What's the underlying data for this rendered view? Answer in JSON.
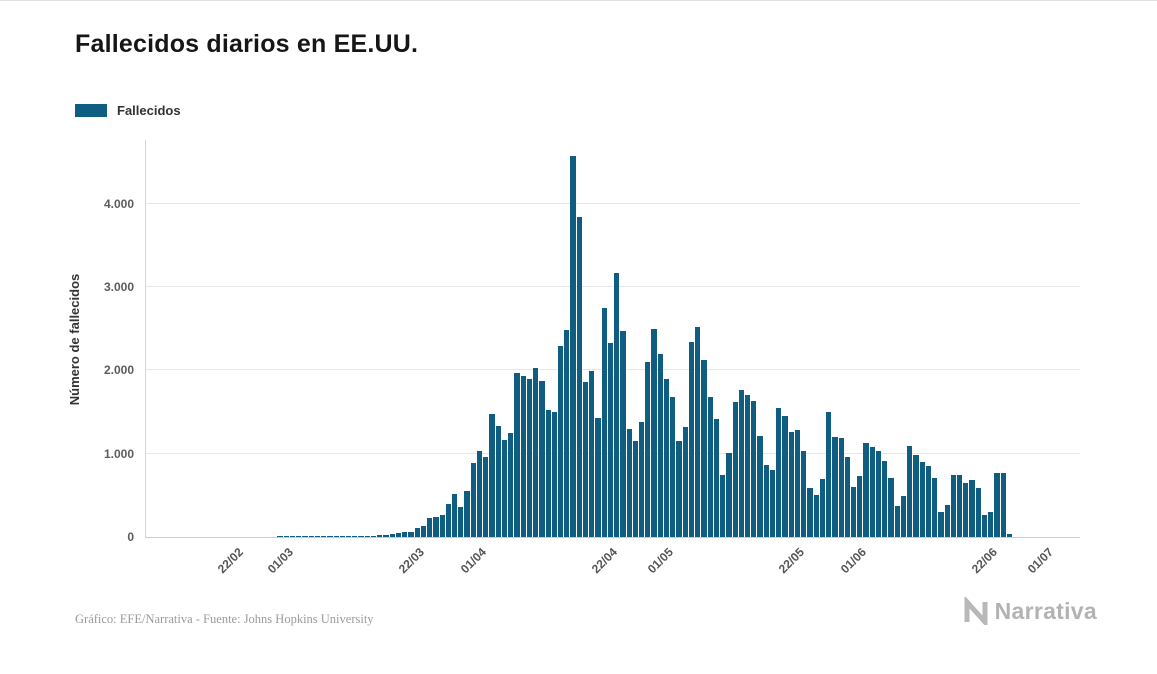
{
  "footer": {
    "credit": "Gráfico: EFE/Narrativa - Fuente: Johns Hopkins University"
  },
  "brand": {
    "name": "Narrativa"
  },
  "chart_data": {
    "type": "bar",
    "title": "Fallecidos diarios en EE.UU.",
    "series_name": "Fallecidos",
    "xlabel": "",
    "ylabel": "Número de fallecidos",
    "bar_color": "#0f5e82",
    "grid": true,
    "legend_position": "top-left",
    "ylim": [
      0,
      4780
    ],
    "y_ticks": [
      {
        "value": 0,
        "label": "0"
      },
      {
        "value": 1000,
        "label": "1.000"
      },
      {
        "value": 2000,
        "label": "2.000"
      },
      {
        "value": 3000,
        "label": "3.000"
      },
      {
        "value": 4000,
        "label": "4.000"
      }
    ],
    "x_ticks": [
      {
        "label": "22/02",
        "index": 14
      },
      {
        "label": "01/03",
        "index": 22
      },
      {
        "label": "22/03",
        "index": 43
      },
      {
        "label": "01/04",
        "index": 53
      },
      {
        "label": "22/04",
        "index": 74
      },
      {
        "label": "01/05",
        "index": 83
      },
      {
        "label": "22/05",
        "index": 104
      },
      {
        "label": "01/06",
        "index": 114
      },
      {
        "label": "22/06",
        "index": 135
      },
      {
        "label": "01/07",
        "index": 144
      }
    ],
    "dates": [
      "08/02",
      "09/02",
      "10/02",
      "11/02",
      "12/02",
      "13/02",
      "14/02",
      "15/02",
      "16/02",
      "17/02",
      "18/02",
      "19/02",
      "20/02",
      "21/02",
      "22/02",
      "23/02",
      "24/02",
      "25/02",
      "26/02",
      "27/02",
      "28/02",
      "29/02",
      "01/03",
      "02/03",
      "03/03",
      "04/03",
      "05/03",
      "06/03",
      "07/03",
      "08/03",
      "09/03",
      "10/03",
      "11/03",
      "12/03",
      "13/03",
      "14/03",
      "15/03",
      "16/03",
      "17/03",
      "18/03",
      "19/03",
      "20/03",
      "21/03",
      "22/03",
      "23/03",
      "24/03",
      "25/03",
      "26/03",
      "27/03",
      "28/03",
      "29/03",
      "30/03",
      "31/03",
      "01/04",
      "02/04",
      "03/04",
      "04/04",
      "05/04",
      "06/04",
      "07/04",
      "08/04",
      "09/04",
      "10/04",
      "11/04",
      "12/04",
      "13/04",
      "14/04",
      "15/04",
      "16/04",
      "17/04",
      "18/04",
      "19/04",
      "20/04",
      "21/04",
      "22/04",
      "23/04",
      "24/04",
      "25/04",
      "26/04",
      "27/04",
      "28/04",
      "29/04",
      "30/04",
      "01/05",
      "02/05",
      "03/05",
      "04/05",
      "05/05",
      "06/05",
      "07/05",
      "08/05",
      "09/05",
      "10/05",
      "11/05",
      "12/05",
      "13/05",
      "14/05",
      "15/05",
      "16/05",
      "17/05",
      "18/05",
      "19/05",
      "20/05",
      "21/05",
      "22/05",
      "23/05",
      "24/05",
      "25/05",
      "26/05",
      "27/05",
      "28/05",
      "29/05",
      "30/05",
      "31/05",
      "01/06",
      "02/06",
      "03/06",
      "04/06",
      "05/06",
      "06/06",
      "07/06",
      "08/06",
      "09/06",
      "10/06",
      "11/06",
      "12/06",
      "13/06",
      "14/06",
      "15/06",
      "16/06",
      "17/06",
      "18/06",
      "19/06",
      "20/06",
      "21/06",
      "22/06",
      "23/06",
      "24/06",
      "25/06",
      "26/06",
      "27/06",
      "28/06",
      "29/06",
      "30/06",
      "01/07",
      "02/07",
      "03/07",
      "04/07",
      "05/07",
      "06/07"
    ],
    "values": [
      0,
      0,
      0,
      0,
      0,
      0,
      0,
      0,
      0,
      0,
      0,
      0,
      0,
      0,
      0,
      0,
      0,
      0,
      0,
      0,
      0,
      1,
      1,
      5,
      3,
      2,
      1,
      3,
      3,
      4,
      4,
      6,
      4,
      3,
      9,
      7,
      12,
      20,
      23,
      41,
      52,
      56,
      62,
      112,
      131,
      225,
      246,
      267,
      400,
      523,
      360,
      558,
      895,
      1040,
      968,
      1480,
      1331,
      1165,
      1255,
      1970,
      1940,
      1900,
      2035,
      1877,
      1528,
      1509,
      2299,
      2494,
      4591,
      3857,
      1867,
      1997,
      1433,
      2763,
      2341,
      3179,
      2475,
      1305,
      1154,
      1384,
      2110,
      2502,
      2201,
      1901,
      1691,
      1154,
      1324,
      2350,
      2528,
      2129,
      1687,
      1422,
      750,
      1008,
      1630,
      1772,
      1715,
      1635,
      1218,
      865,
      808,
      1552,
      1461,
      1263,
      1293,
      1036,
      592,
      505,
      693,
      1505,
      1199,
      1193,
      960,
      605,
      730,
      1134,
      1083,
      1031,
      921,
      709,
      373,
      497,
      1093,
      985,
      902,
      852,
      710,
      302,
      389,
      741,
      747,
      654,
      690,
      594,
      267,
      303,
      767,
      774,
      40,
      0,
      0,
      0,
      0,
      0,
      0,
      0,
      0,
      0,
      0,
      0
    ]
  }
}
